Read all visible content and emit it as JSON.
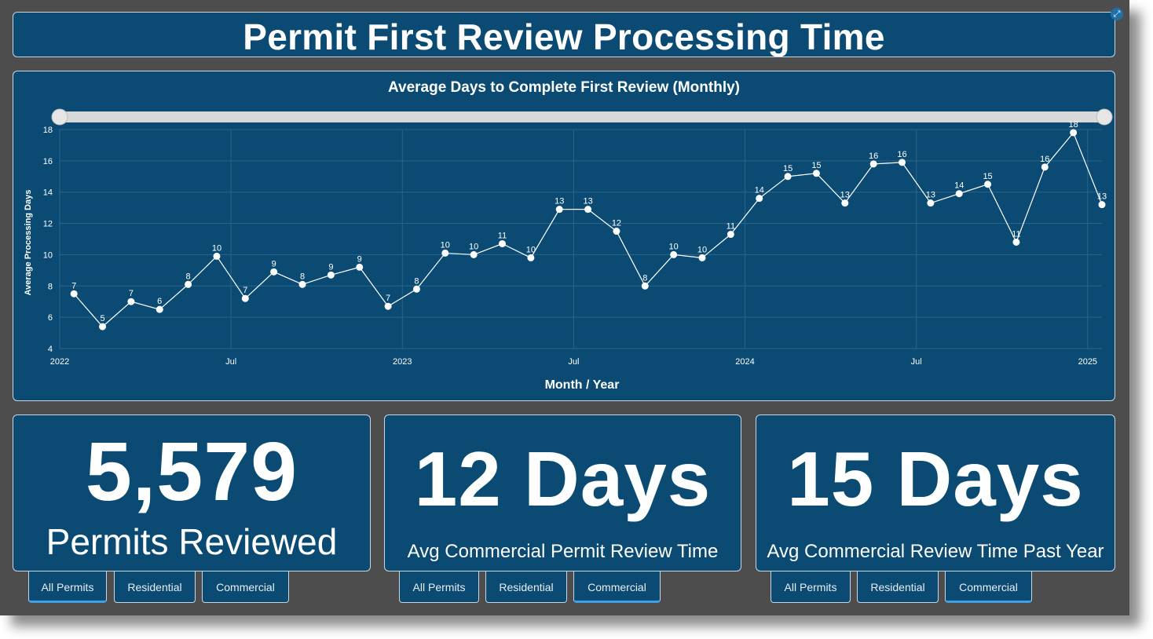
{
  "header": {
    "title": "Permit First Review Processing Time"
  },
  "chart_data": {
    "type": "line",
    "title": "Average Days to Complete First Review (Monthly)",
    "xlabel": "Month / Year",
    "ylabel": "Average Processing Days",
    "ylim": [
      4,
      18
    ],
    "yticks": [
      4,
      6,
      8,
      10,
      12,
      14,
      16,
      18
    ],
    "xticks": [
      {
        "label": "2022",
        "index": 0
      },
      {
        "label": "Jul",
        "index": 6
      },
      {
        "label": "2023",
        "index": 12
      },
      {
        "label": "Jul",
        "index": 18
      },
      {
        "label": "2024",
        "index": 24
      },
      {
        "label": "Jul",
        "index": 30
      },
      {
        "label": "2025",
        "index": 36
      }
    ],
    "x_range_months": [
      0,
      36.5
    ],
    "grid": true,
    "range_slider": true,
    "series": [
      {
        "values": [
          7.5,
          5.4,
          7.0,
          6.5,
          8.1,
          9.9,
          7.2,
          8.9,
          8.1,
          8.7,
          9.2,
          6.7,
          7.8,
          10.1,
          10.0,
          10.7,
          9.8,
          12.9,
          12.9,
          11.5,
          8.0,
          10.0,
          9.8,
          11.3,
          13.6,
          15.0,
          15.2,
          13.3,
          15.8,
          15.9,
          13.3,
          13.9,
          14.5,
          10.8,
          15.6,
          17.8,
          13.2
        ],
        "labels": [
          "7",
          "5",
          "7",
          "6",
          "8",
          "10",
          "7",
          "9",
          "8",
          "9",
          "9",
          "7",
          "8",
          "10",
          "10",
          "11",
          "10",
          "13",
          "13",
          "12",
          "8",
          "10",
          "10",
          "11",
          "14",
          "15",
          "15",
          "13",
          "16",
          "16",
          "13",
          "14",
          "15",
          "11",
          "16",
          "18",
          "13"
        ]
      }
    ]
  },
  "cards": [
    {
      "value": "5,579",
      "label": "Permits Reviewed",
      "tabs": [
        "All Permits",
        "Residential",
        "Commercial"
      ],
      "active_tab": "All Permits"
    },
    {
      "value": "12 Days",
      "label": "Avg Commercial Permit Review Time",
      "tabs": [
        "All Permits",
        "Residential",
        "Commercial"
      ],
      "active_tab": "Commercial"
    },
    {
      "value": "15 Days",
      "label": "Avg Commercial Review Time Past Year",
      "tabs": [
        "All Permits",
        "Residential",
        "Commercial"
      ],
      "active_tab": "Commercial"
    }
  ],
  "icons": {
    "expand": "expand-icon"
  },
  "colors": {
    "panel": "#0b4b73",
    "frame": "#4d4d4d",
    "active_tab_indicator": "#3fa0e6"
  }
}
